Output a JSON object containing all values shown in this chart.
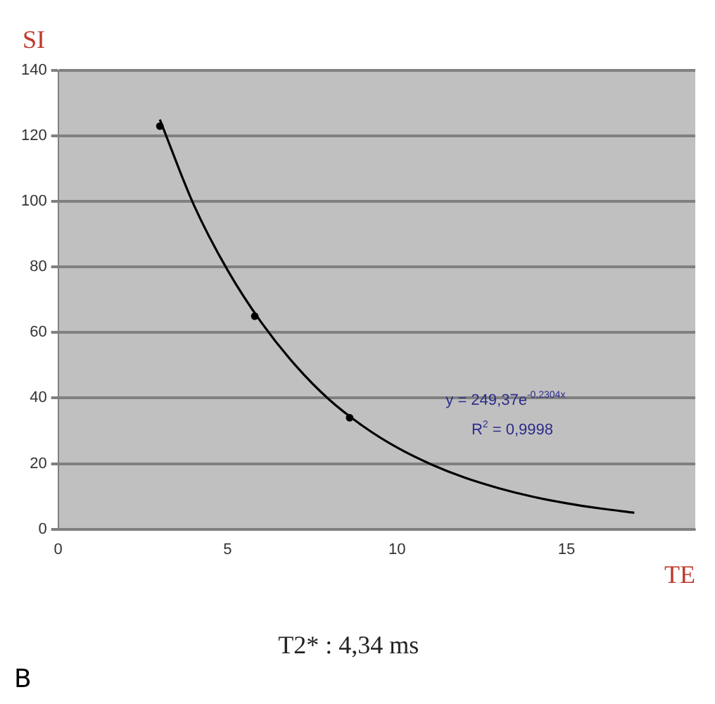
{
  "chart_data": {
    "type": "scatter",
    "xlabel": "TE",
    "ylabel": "SI",
    "xlim": [
      0,
      18.8
    ],
    "xticks": [
      0,
      5,
      10,
      15
    ],
    "ylim": [
      0,
      140
    ],
    "yticks": [
      0,
      20,
      40,
      60,
      80,
      100,
      120,
      140
    ],
    "grid": "y",
    "legend": false,
    "series": [
      {
        "color": "#000000",
        "marker": "circle",
        "x": [
          3,
          5.8,
          8.6
        ],
        "values": [
          123,
          65,
          34
        ]
      },
      {
        "type": "line",
        "color": "#000000",
        "marker": "none",
        "line_style": "solid",
        "x": [
          3,
          4,
          5,
          6,
          7,
          8,
          9,
          10,
          11,
          12,
          13,
          14,
          15,
          16,
          17
        ],
        "values": [
          125,
          99,
          79,
          63,
          50,
          39.5,
          31.4,
          24.9,
          19.8,
          15.7,
          12.5,
          9.9,
          7.9,
          6.3,
          5
        ]
      }
    ],
    "annotations": [
      "y = 249,37e$^{-0,2304x}$",
      "R$^{2}$ = 0,9998",
      "T2* : 4,34 ms",
      "B"
    ]
  }
}
